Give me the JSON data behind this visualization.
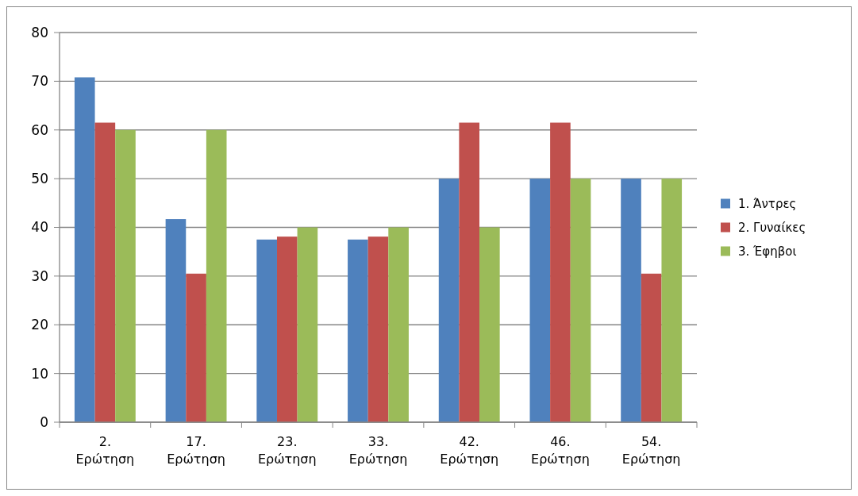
{
  "chart_data": {
    "type": "bar",
    "categories": [
      "2. Ερώτηση",
      "17. Ερώτηση",
      "23. Ερώτηση",
      "33. Ερώτηση",
      "42. Ερώτηση",
      "46. Ερώτηση",
      "54. Ερώτηση"
    ],
    "series": [
      {
        "name": "1. Άντρες",
        "color": "#4f81bd",
        "values": [
          70.8,
          41.7,
          37.5,
          37.5,
          50,
          50,
          50
        ]
      },
      {
        "name": "2. Γυναίκες",
        "color": "#c0504d",
        "values": [
          61.5,
          30.5,
          38.1,
          38.1,
          61.5,
          61.5,
          30.5
        ]
      },
      {
        "name": "3. Έφηβοι",
        "color": "#9bbb59",
        "values": [
          60,
          60,
          40,
          40,
          40,
          50,
          50
        ]
      }
    ],
    "ylim": [
      0,
      80
    ],
    "yticks": [
      0,
      10,
      20,
      30,
      40,
      50,
      60,
      70,
      80
    ],
    "grid": "y",
    "legend": "right"
  }
}
